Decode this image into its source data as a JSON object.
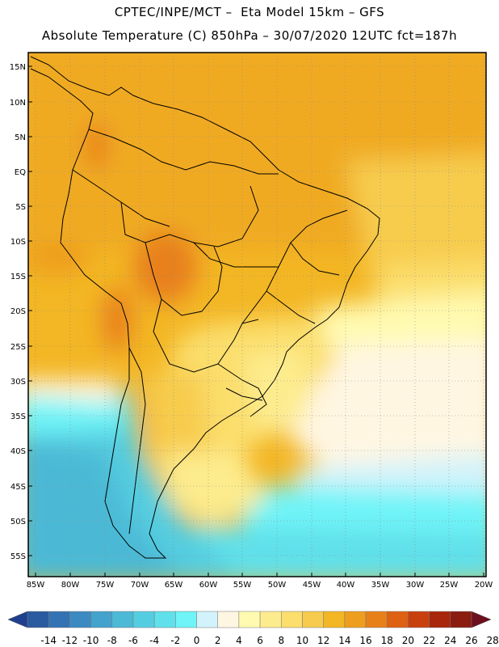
{
  "header": {
    "line1": "CPTEC/INPE/MCT –  Eta Model 15km – GFS",
    "line2": "Absolute Temperature (C) 850hPa – 30/07/2020 12UTC fct=187h"
  },
  "map": {
    "lat_labels": [
      "15N",
      "10N",
      "5N",
      "EQ",
      "5S",
      "10S",
      "15S",
      "20S",
      "25S",
      "30S",
      "35S",
      "40S",
      "45S",
      "50S",
      "55S"
    ],
    "lon_labels": [
      "85W",
      "80W",
      "75W",
      "70W",
      "65W",
      "60W",
      "55W",
      "50W",
      "45W",
      "40W",
      "35W",
      "30W",
      "25W",
      "20W"
    ],
    "region": "South America"
  },
  "colorbar": {
    "labels": [
      "-14",
      "-12",
      "-10",
      "-8",
      "-6",
      "-4",
      "-2",
      "0",
      "2",
      "4",
      "6",
      "8",
      "10",
      "12",
      "14",
      "16",
      "18",
      "20",
      "22",
      "24",
      "26",
      "28"
    ],
    "colors": [
      "#1f3f8f",
      "#2a5aa0",
      "#3373b3",
      "#3b8bc2",
      "#43a3cc",
      "#4cb9d6",
      "#55cde0",
      "#60e0ea",
      "#6ff4f8",
      "#d2f3fb",
      "#fff6e2",
      "#fffab0",
      "#fdec8e",
      "#fbde6c",
      "#f7cc4e",
      "#f3b624",
      "#ee9e1e",
      "#e8801a",
      "#de6012",
      "#c8400e",
      "#a8260c",
      "#8a1c10",
      "#6e0f1e"
    ]
  }
}
